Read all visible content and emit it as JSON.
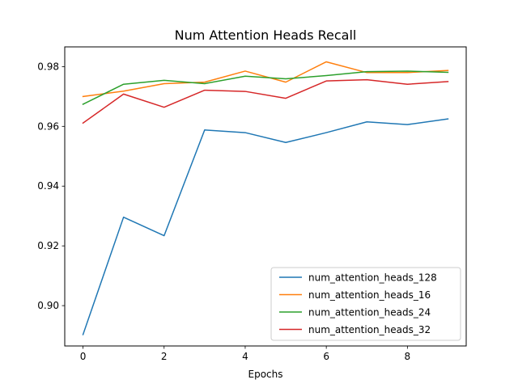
{
  "chart_data": {
    "type": "line",
    "title": "Num Attention Heads Recall",
    "xlabel": "Epochs",
    "ylabel": "",
    "xlim": [
      -0.45,
      9.45
    ],
    "ylim": [
      0.8865,
      0.9866
    ],
    "xticks": [
      0,
      2,
      4,
      6,
      8
    ],
    "yticks": [
      0.9,
      0.92,
      0.94,
      0.96,
      0.98
    ],
    "ytick_labels": [
      "0.90",
      "0.92",
      "0.94",
      "0.96",
      "0.98"
    ],
    "x": [
      0,
      1,
      2,
      3,
      4,
      5,
      6,
      7,
      8,
      9
    ],
    "grid": false,
    "legend_position": "lower right",
    "series": [
      {
        "name": "num_attention_heads_128",
        "color": "#1f77b4",
        "values": [
          0.8903,
          0.9296,
          0.9234,
          0.9588,
          0.9579,
          0.9546,
          0.9579,
          0.9615,
          0.9606,
          0.9625
        ]
      },
      {
        "name": "num_attention_heads_16",
        "color": "#ff7f0e",
        "values": [
          0.97,
          0.9718,
          0.9743,
          0.9748,
          0.9785,
          0.9748,
          0.9816,
          0.978,
          0.978,
          0.9787
        ]
      },
      {
        "name": "num_attention_heads_24",
        "color": "#2ca02c",
        "values": [
          0.9674,
          0.9741,
          0.9754,
          0.9743,
          0.9768,
          0.9759,
          0.977,
          0.9783,
          0.9785,
          0.9781
        ]
      },
      {
        "name": "num_attention_heads_32",
        "color": "#d62728",
        "values": [
          0.9611,
          0.9708,
          0.9664,
          0.9721,
          0.9717,
          0.9694,
          0.9752,
          0.9756,
          0.9741,
          0.975
        ]
      }
    ]
  }
}
